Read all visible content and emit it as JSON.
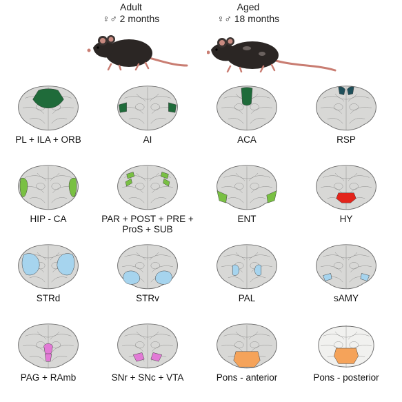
{
  "header": {
    "adult": {
      "title": "Adult",
      "subtitle": "♀♂ 2 months"
    },
    "aged": {
      "title": "Aged",
      "subtitle": "♀♂ 18 months"
    }
  },
  "colors": {
    "dark_green": "#1f6b3a",
    "light_green": "#79c043",
    "red": "#e3241b",
    "light_blue": "#a6d4ee",
    "pink": "#e27ad6",
    "orange": "#f5a35a",
    "teal": "#1f4f5a",
    "brain_fill": "#d8d8d6",
    "brain_line": "#6e6e6e"
  },
  "panels": [
    {
      "label": "PL + ILA + ORB",
      "region": "pl-ila-orb",
      "color": "dark_green"
    },
    {
      "label": "AI",
      "region": "ai",
      "color": "dark_green"
    },
    {
      "label": "ACA",
      "region": "aca",
      "color": "dark_green"
    },
    {
      "label": "RSP",
      "region": "rsp",
      "color": "teal"
    },
    {
      "label": "HIP - CA",
      "region": "hip-ca",
      "color": "light_green"
    },
    {
      "label": "PAR + POST + PRE +",
      "label2": "ProS + SUB",
      "region": "par-post",
      "color": "light_green"
    },
    {
      "label": "ENT",
      "region": "ent",
      "color": "light_green"
    },
    {
      "label": "HY",
      "region": "hy",
      "color": "red"
    },
    {
      "label": "STRd",
      "region": "strd",
      "color": "light_blue"
    },
    {
      "label": "STRv",
      "region": "strv",
      "color": "light_blue"
    },
    {
      "label": "PAL",
      "region": "pal",
      "color": "light_blue"
    },
    {
      "label": "sAMY",
      "region": "samy",
      "color": "light_blue"
    },
    {
      "label": "PAG + RAmb",
      "region": "pag",
      "color": "pink"
    },
    {
      "label": "SNr + SNc + VTA",
      "region": "snr",
      "color": "pink"
    },
    {
      "label": "Pons - anterior",
      "region": "pons-a",
      "color": "orange"
    },
    {
      "label": "Pons - posterior",
      "region": "pons-p",
      "color": "orange"
    }
  ]
}
